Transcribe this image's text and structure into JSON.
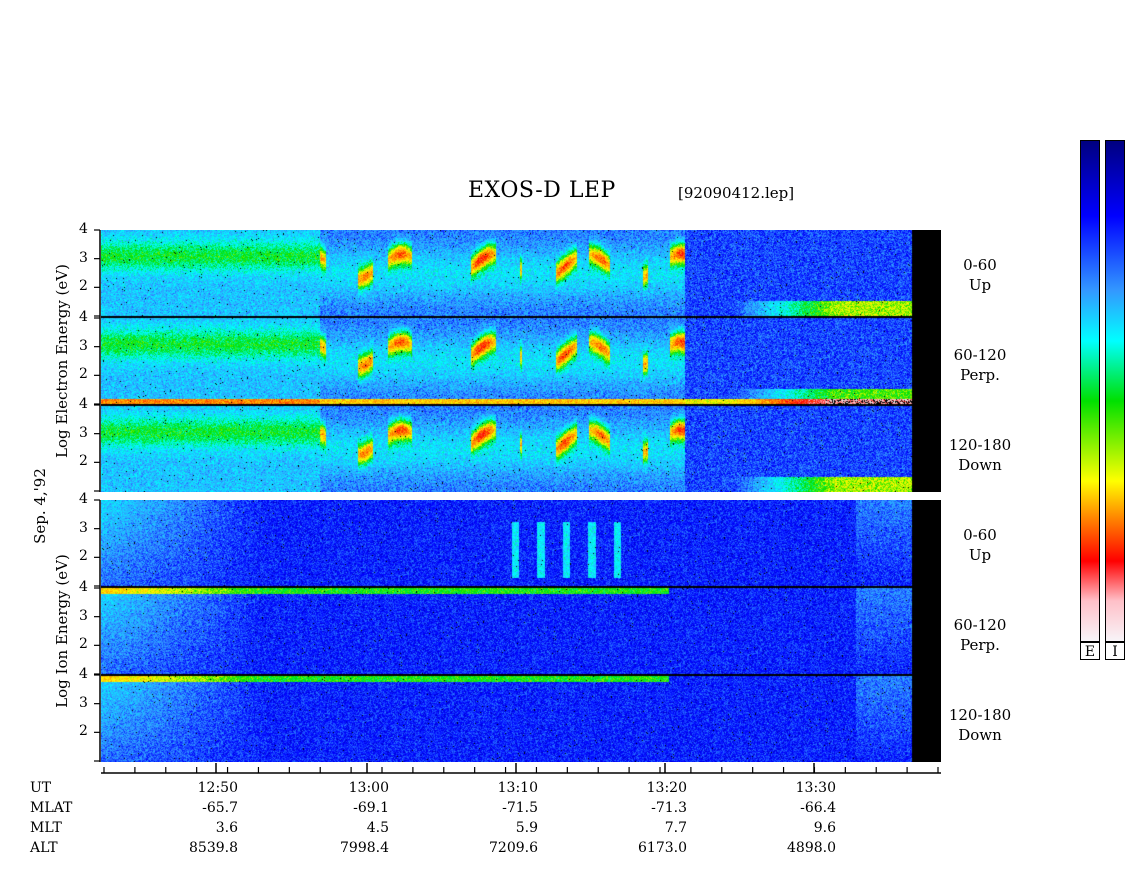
{
  "header": {
    "title": "EXOS-D LEP",
    "file": "[92090412.lep]"
  },
  "y_axis_labels": {
    "electron": "Log  Electron  Energy (eV)",
    "date": "Sep. 4,'92",
    "ion": "Log  Ion  Energy (eV)"
  },
  "y_ticks": [
    "4",
    "3",
    "2"
  ],
  "panel_labels": [
    {
      "range": "0-60",
      "dir": "Up"
    },
    {
      "range": "60-120",
      "dir": "Perp."
    },
    {
      "range": "120-180",
      "dir": "Down"
    },
    {
      "range": "0-60",
      "dir": "Up"
    },
    {
      "range": "60-120",
      "dir": "Perp."
    },
    {
      "range": "120-180",
      "dir": "Down"
    }
  ],
  "colorbar": {
    "labels": [
      "E",
      "I"
    ]
  },
  "orbit_table": {
    "row_labels": [
      "UT",
      "MLAT",
      "MLT",
      "ALT"
    ],
    "columns": [
      {
        "UT": "12:50",
        "MLAT": "-65.7",
        "MLT": "3.6",
        "ALT": "8539.8"
      },
      {
        "UT": "13:00",
        "MLAT": "-69.1",
        "MLT": "4.5",
        "ALT": "7998.4"
      },
      {
        "UT": "13:10",
        "MLAT": "-71.5",
        "MLT": "5.9",
        "ALT": "7209.6"
      },
      {
        "UT": "13:20",
        "MLAT": "-71.3",
        "MLT": "7.7",
        "ALT": "6173.0"
      },
      {
        "UT": "13:30",
        "MLAT": "-66.4",
        "MLT": "9.6",
        "ALT": "4898.0"
      }
    ]
  },
  "chart_data": {
    "type": "heatmap",
    "title": "EXOS-D LEP",
    "xlabel": "UT",
    "x_ticks": [
      "12:50",
      "13:00",
      "13:10",
      "13:20",
      "13:30"
    ],
    "ylabel_electron": "Log  Electron  Energy (eV)",
    "ylabel_ion": "Log  Ion  Energy (eV)",
    "ylim": [
      1,
      4
    ],
    "y_ticks": [
      2,
      3,
      4
    ],
    "colormap": [
      "#f5f0f5",
      "#ff0000",
      "#ff8c00",
      "#ffff00",
      "#00e000",
      "#00ffff",
      "#3399ff",
      "#0000ff",
      "#000080"
    ],
    "panels": [
      {
        "species": "Electron",
        "pitch": "0-60",
        "dir": "Up"
      },
      {
        "species": "Electron",
        "pitch": "60-120",
        "dir": "Perp."
      },
      {
        "species": "Electron",
        "pitch": "120-180",
        "dir": "Down"
      },
      {
        "species": "Ion",
        "pitch": "0-60",
        "dir": "Up"
      },
      {
        "species": "Ion",
        "pitch": "60-120",
        "dir": "Perp."
      },
      {
        "species": "Ion",
        "pitch": "120-180",
        "dir": "Down"
      }
    ]
  }
}
